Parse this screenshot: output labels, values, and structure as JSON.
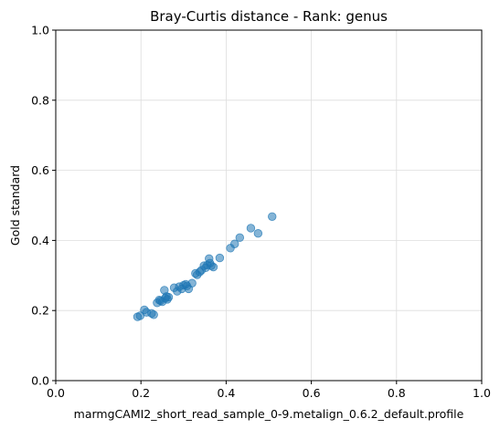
{
  "chart_data": {
    "type": "scatter",
    "title": "Bray-Curtis distance - Rank: genus",
    "xlabel": "marmgCAMI2_short_read_sample_0-9.metalign_0.6.2_default.profile",
    "ylabel": "Gold standard",
    "xlim": [
      0,
      1
    ],
    "ylim": [
      0,
      1
    ],
    "xticks": [
      "0.0",
      "0.2",
      "0.4",
      "0.6",
      "0.8",
      "1.0"
    ],
    "yticks": [
      "0.0",
      "0.2",
      "0.4",
      "0.6",
      "0.8",
      "1.0"
    ],
    "grid": true,
    "marker_color": "#1f77b4",
    "series": [
      {
        "x": [
          0.192,
          0.198,
          0.208,
          0.213,
          0.225,
          0.23,
          0.238,
          0.243,
          0.246,
          0.25,
          0.255,
          0.257,
          0.26,
          0.262,
          0.265,
          0.278,
          0.285,
          0.29,
          0.296,
          0.3,
          0.305,
          0.308,
          0.312,
          0.32,
          0.328,
          0.332,
          0.338,
          0.342,
          0.348,
          0.352,
          0.356,
          0.36,
          0.362,
          0.365,
          0.37,
          0.385,
          0.41,
          0.42,
          0.432,
          0.458,
          0.475,
          0.508
        ],
        "y": [
          0.182,
          0.185,
          0.202,
          0.195,
          0.192,
          0.188,
          0.222,
          0.23,
          0.228,
          0.225,
          0.258,
          0.235,
          0.24,
          0.232,
          0.238,
          0.265,
          0.255,
          0.268,
          0.262,
          0.272,
          0.275,
          0.27,
          0.262,
          0.278,
          0.306,
          0.302,
          0.31,
          0.315,
          0.328,
          0.322,
          0.33,
          0.348,
          0.335,
          0.328,
          0.324,
          0.35,
          0.378,
          0.39,
          0.408,
          0.435,
          0.42,
          0.468
        ]
      }
    ]
  }
}
